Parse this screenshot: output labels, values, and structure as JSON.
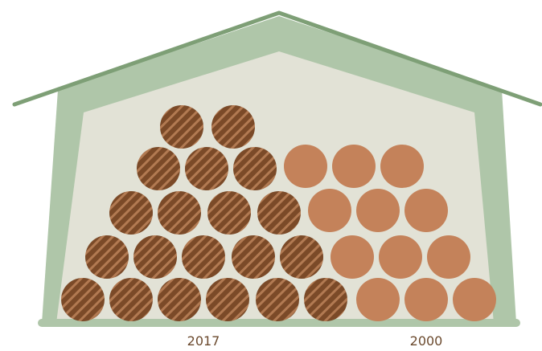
{
  "labels": [
    "2017",
    "2000"
  ]
}
